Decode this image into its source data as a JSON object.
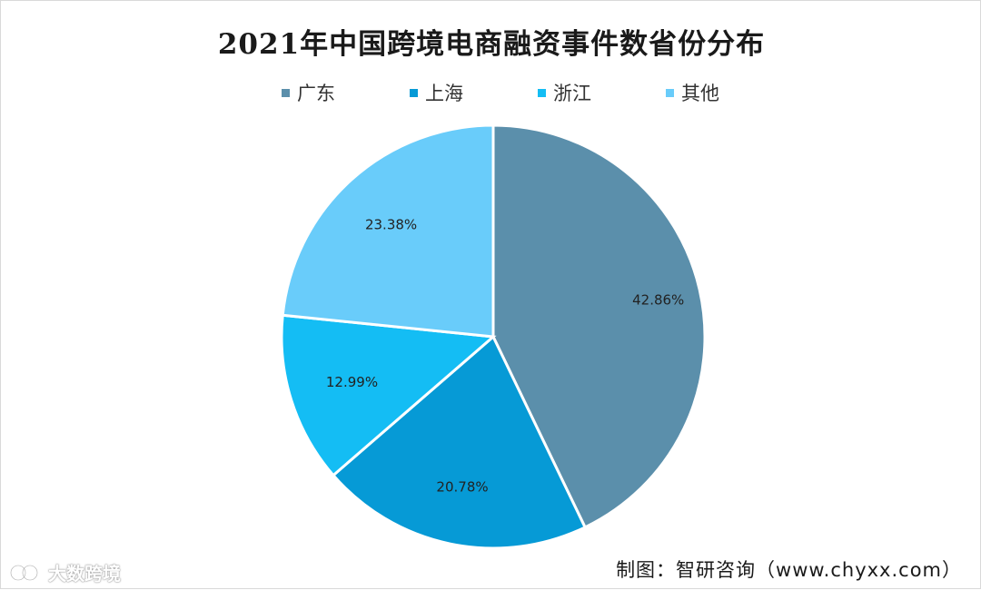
{
  "chart_data": {
    "type": "pie",
    "title": "2021年中国跨境电商融资事件数省份分布",
    "categories": [
      "广东",
      "上海",
      "浙江",
      "其他"
    ],
    "values": [
      42.86,
      20.78,
      12.99,
      23.38
    ],
    "labels": [
      "42.86%",
      "20.78%",
      "12.99%",
      "23.38%"
    ],
    "colors": [
      "#5b8fab",
      "#069ad6",
      "#14bdf4",
      "#69ccfa"
    ],
    "legend": {
      "placement": "top",
      "entries": [
        "广东",
        "上海",
        "浙江",
        "其他"
      ]
    }
  },
  "footer": {
    "source": "制图：智研咨询（www.chyxx.com）",
    "watermark": "大数跨境"
  }
}
